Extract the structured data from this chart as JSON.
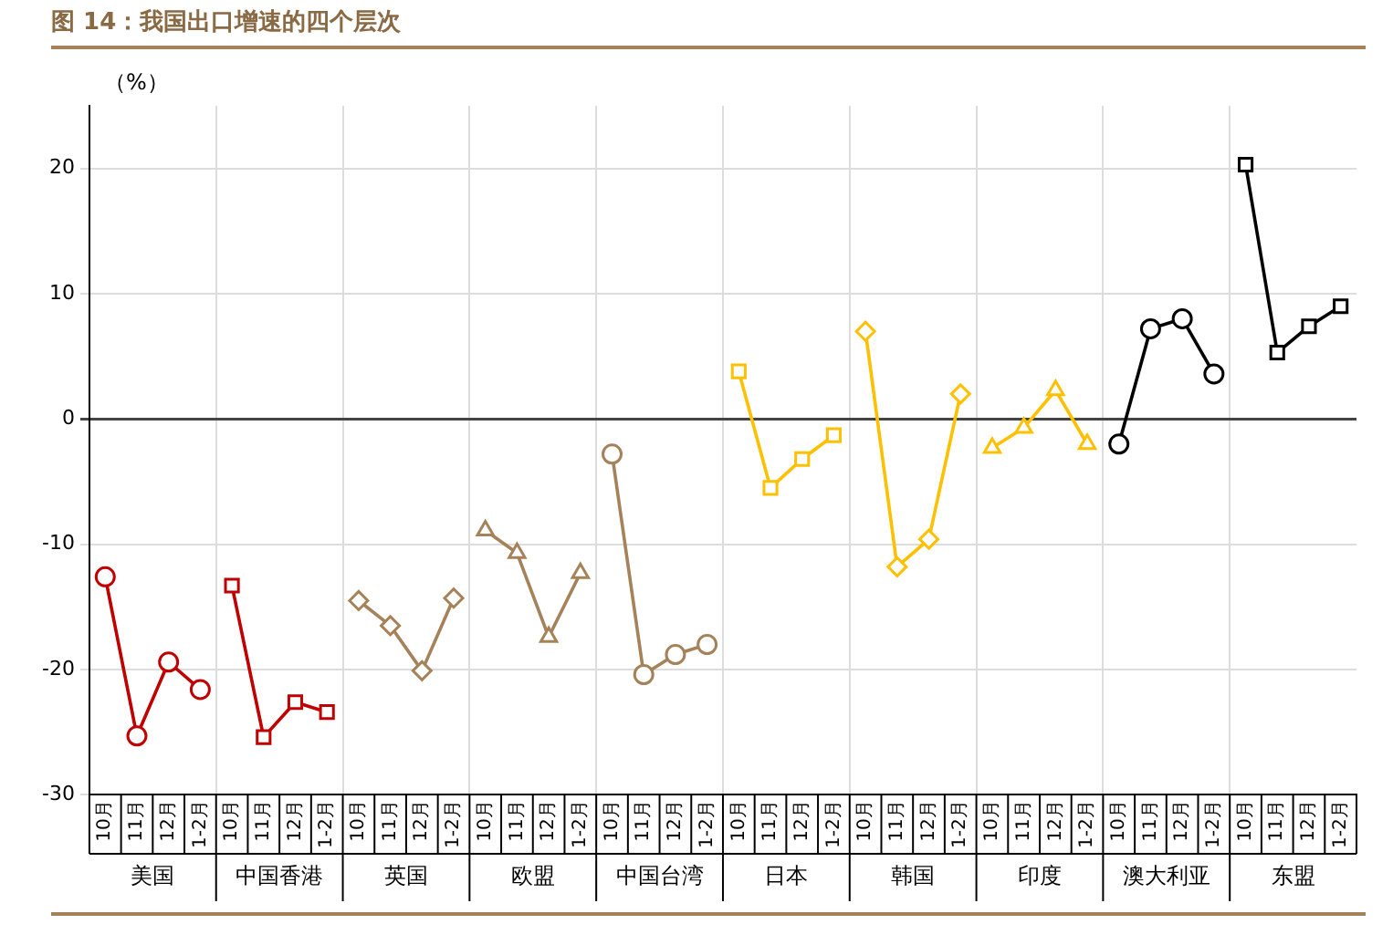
{
  "chart_data": {
    "type": "line",
    "title": "图 14：我国出口增速的四个层次",
    "ylabel": "（%）",
    "categories": [
      "10月",
      "11月",
      "12月",
      "1-2月",
      "10月",
      "11月",
      "12月",
      "1-2月",
      "10月",
      "11月",
      "12月",
      "1-2月",
      "10月",
      "11月",
      "12月",
      "1-2月",
      "10月",
      "11月",
      "12月",
      "1-2月",
      "10月",
      "11月",
      "12月",
      "1-2月",
      "10月",
      "11月",
      "12月",
      "1-2月",
      "10月",
      "11月",
      "12月",
      "1-2月",
      "10月",
      "11月",
      "12月",
      "1-2月",
      "10月",
      "11月",
      "12月",
      "1-2月"
    ],
    "series": [
      {
        "color": "#c00000",
        "marker": "circle",
        "values": [
          -12.6,
          -25.3,
          -19.4,
          -21.6,
          null,
          null,
          null,
          null,
          null,
          null,
          null,
          null,
          null,
          null,
          null,
          null,
          null,
          null,
          null,
          null,
          null,
          null,
          null,
          null,
          null,
          null,
          null,
          null,
          null,
          null,
          null,
          null,
          null,
          null,
          null,
          null,
          null,
          null,
          null,
          null
        ]
      },
      {
        "color": "#c00000",
        "marker": "square",
        "values": [
          null,
          null,
          null,
          null,
          -13.3,
          -25.4,
          -22.6,
          -23.4,
          null,
          null,
          null,
          null,
          null,
          null,
          null,
          null,
          null,
          null,
          null,
          null,
          null,
          null,
          null,
          null,
          null,
          null,
          null,
          null,
          null,
          null,
          null,
          null,
          null,
          null,
          null,
          null,
          null,
          null,
          null,
          null
        ]
      },
      {
        "color": "#a6825a",
        "marker": "diamond",
        "values": [
          null,
          null,
          null,
          null,
          null,
          null,
          null,
          null,
          -14.5,
          -16.5,
          -20.1,
          -14.3,
          null,
          null,
          null,
          null,
          null,
          null,
          null,
          null,
          null,
          null,
          null,
          null,
          null,
          null,
          null,
          null,
          null,
          null,
          null,
          null,
          null,
          null,
          null,
          null,
          null,
          null,
          null,
          null
        ]
      },
      {
        "color": "#a6825a",
        "marker": "triangle",
        "values": [
          null,
          null,
          null,
          null,
          null,
          null,
          null,
          null,
          null,
          null,
          null,
          null,
          -8.9,
          -10.7,
          -17.4,
          -12.3,
          null,
          null,
          null,
          null,
          null,
          null,
          null,
          null,
          null,
          null,
          null,
          null,
          null,
          null,
          null,
          null,
          null,
          null,
          null,
          null,
          null,
          null,
          null,
          null
        ]
      },
      {
        "color": "#a6825a",
        "marker": "circle",
        "values": [
          null,
          null,
          null,
          null,
          null,
          null,
          null,
          null,
          null,
          null,
          null,
          null,
          null,
          null,
          null,
          null,
          -2.8,
          -20.4,
          -18.8,
          -18.0,
          null,
          null,
          null,
          null,
          null,
          null,
          null,
          null,
          null,
          null,
          null,
          null,
          null,
          null,
          null,
          null,
          null,
          null,
          null,
          null
        ]
      },
      {
        "color": "#ffc000",
        "marker": "square",
        "values": [
          null,
          null,
          null,
          null,
          null,
          null,
          null,
          null,
          null,
          null,
          null,
          null,
          null,
          null,
          null,
          null,
          null,
          null,
          null,
          null,
          3.8,
          -5.5,
          -3.2,
          -1.3,
          null,
          null,
          null,
          null,
          null,
          null,
          null,
          null,
          null,
          null,
          null,
          null,
          null,
          null,
          null,
          null
        ]
      },
      {
        "color": "#ffc000",
        "marker": "diamond",
        "values": [
          null,
          null,
          null,
          null,
          null,
          null,
          null,
          null,
          null,
          null,
          null,
          null,
          null,
          null,
          null,
          null,
          null,
          null,
          null,
          null,
          null,
          null,
          null,
          null,
          7.0,
          -11.8,
          -9.6,
          2.0,
          null,
          null,
          null,
          null,
          null,
          null,
          null,
          null,
          null,
          null,
          null,
          null
        ]
      },
      {
        "color": "#ffc000",
        "marker": "triangle",
        "values": [
          null,
          null,
          null,
          null,
          null,
          null,
          null,
          null,
          null,
          null,
          null,
          null,
          null,
          null,
          null,
          null,
          null,
          null,
          null,
          null,
          null,
          null,
          null,
          null,
          null,
          null,
          null,
          null,
          -2.3,
          -0.7,
          2.3,
          -2.0,
          null,
          null,
          null,
          null,
          null,
          null,
          null,
          null
        ]
      },
      {
        "color": "#000000",
        "marker": "circle",
        "values": [
          null,
          null,
          null,
          null,
          null,
          null,
          null,
          null,
          null,
          null,
          null,
          null,
          null,
          null,
          null,
          null,
          null,
          null,
          null,
          null,
          null,
          null,
          null,
          null,
          null,
          null,
          null,
          null,
          null,
          null,
          null,
          null,
          -2.0,
          7.2,
          8.0,
          3.6,
          null,
          null,
          null,
          null
        ]
      },
      {
        "color": "#000000",
        "marker": "square",
        "values": [
          null,
          null,
          null,
          null,
          null,
          null,
          null,
          null,
          null,
          null,
          null,
          null,
          null,
          null,
          null,
          null,
          null,
          null,
          null,
          null,
          null,
          null,
          null,
          null,
          null,
          null,
          null,
          null,
          null,
          null,
          null,
          null,
          null,
          null,
          null,
          null,
          20.3,
          5.3,
          7.4,
          9.0
        ]
      }
    ],
    "annotations": [
      "美国",
      "中国香港",
      "英国",
      "欧盟",
      "中国台湾",
      "日本",
      "韩国",
      "印度",
      "澳大利亚",
      "东盟"
    ],
    "ylim": [
      -30,
      25
    ],
    "yticks": [
      -30,
      -20,
      -10,
      0,
      10,
      20
    ],
    "grid": true,
    "legend": false
  }
}
